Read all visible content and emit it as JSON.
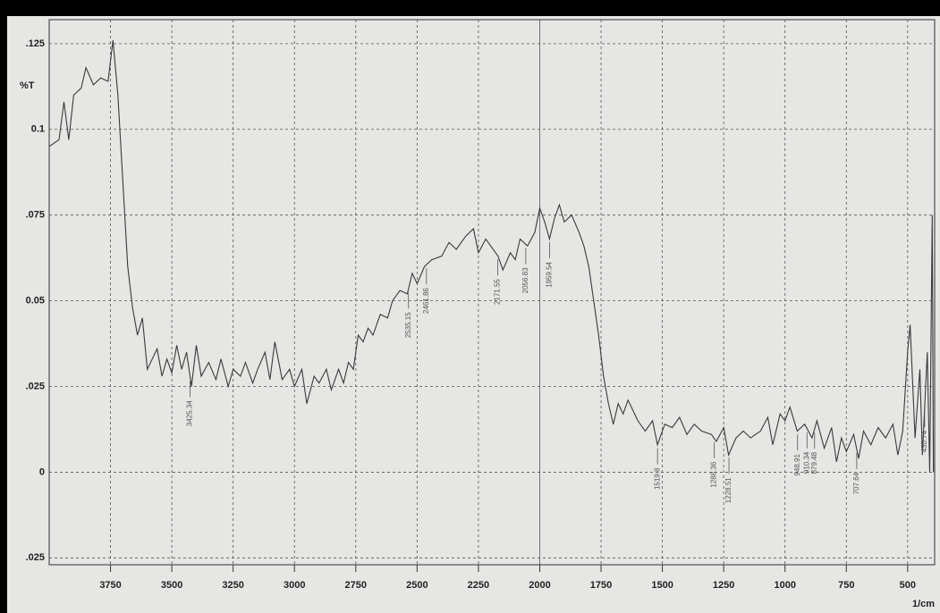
{
  "chart_data": {
    "type": "line",
    "ylabel": "%T",
    "xlabel": "1/cm",
    "xlim": [
      4000,
      390
    ],
    "xticks": [
      3750,
      3500,
      3250,
      3000,
      2750,
      2500,
      2250,
      2000,
      1750,
      1500,
      1250,
      1000,
      750,
      500
    ],
    "ylim": [
      -0.027,
      0.132
    ],
    "yticks": [
      {
        "value": 0.125,
        "label": ".125"
      },
      0.1,
      {
        "value": 0.075,
        "label": ".075"
      },
      0.05,
      {
        "value": 0.025,
        "label": ".025"
      },
      0,
      {
        "value": -0.025,
        "label": ".025"
      }
    ],
    "grid": true,
    "series": [
      {
        "color": "#3a3a3a",
        "x": [
          4000,
          3960,
          3940,
          3920,
          3900,
          3870,
          3850,
          3820,
          3790,
          3760,
          3740,
          3720,
          3700,
          3680,
          3660,
          3640,
          3620,
          3600,
          3580,
          3560,
          3540,
          3520,
          3500,
          3480,
          3460,
          3440,
          3420,
          3400,
          3380,
          3350,
          3320,
          3300,
          3270,
          3250,
          3220,
          3200,
          3170,
          3150,
          3120,
          3100,
          3080,
          3050,
          3020,
          3000,
          2970,
          2950,
          2920,
          2900,
          2870,
          2850,
          2820,
          2800,
          2780,
          2760,
          2740,
          2720,
          2700,
          2680,
          2650,
          2620,
          2600,
          2570,
          2540,
          2520,
          2500,
          2470,
          2440,
          2400,
          2370,
          2340,
          2300,
          2270,
          2250,
          2220,
          2200,
          2170,
          2150,
          2120,
          2100,
          2080,
          2050,
          2020,
          2000,
          1980,
          1960,
          1940,
          1920,
          1900,
          1870,
          1840,
          1820,
          1800,
          1780,
          1760,
          1740,
          1720,
          1700,
          1680,
          1660,
          1640,
          1600,
          1570,
          1540,
          1520,
          1490,
          1460,
          1430,
          1400,
          1370,
          1340,
          1300,
          1280,
          1250,
          1230,
          1200,
          1170,
          1140,
          1100,
          1070,
          1050,
          1020,
          1000,
          980,
          950,
          920,
          890,
          870,
          840,
          810,
          790,
          770,
          750,
          720,
          700,
          680,
          650,
          620,
          590,
          560,
          540,
          520,
          500,
          490,
          470,
          450,
          440,
          420,
          410,
          400,
          395
        ],
        "values": [
          0.095,
          0.097,
          0.108,
          0.097,
          0.11,
          0.112,
          0.118,
          0.113,
          0.115,
          0.114,
          0.126,
          0.11,
          0.085,
          0.06,
          0.048,
          0.04,
          0.045,
          0.03,
          0.033,
          0.036,
          0.028,
          0.033,
          0.029,
          0.037,
          0.03,
          0.035,
          0.025,
          0.037,
          0.028,
          0.032,
          0.027,
          0.033,
          0.025,
          0.03,
          0.028,
          0.032,
          0.026,
          0.03,
          0.035,
          0.027,
          0.038,
          0.027,
          0.03,
          0.025,
          0.03,
          0.02,
          0.028,
          0.026,
          0.03,
          0.024,
          0.03,
          0.026,
          0.032,
          0.03,
          0.04,
          0.038,
          0.042,
          0.04,
          0.046,
          0.045,
          0.05,
          0.053,
          0.052,
          0.058,
          0.055,
          0.06,
          0.062,
          0.063,
          0.067,
          0.065,
          0.069,
          0.071,
          0.064,
          0.068,
          0.066,
          0.063,
          0.059,
          0.064,
          0.062,
          0.068,
          0.066,
          0.07,
          0.077,
          0.073,
          0.068,
          0.074,
          0.078,
          0.073,
          0.075,
          0.07,
          0.066,
          0.06,
          0.05,
          0.04,
          0.028,
          0.02,
          0.014,
          0.02,
          0.017,
          0.021,
          0.015,
          0.012,
          0.015,
          0.008,
          0.014,
          0.013,
          0.016,
          0.011,
          0.014,
          0.012,
          0.011,
          0.009,
          0.013,
          0.005,
          0.01,
          0.012,
          0.01,
          0.012,
          0.016,
          0.008,
          0.017,
          0.015,
          0.019,
          0.012,
          0.014,
          0.01,
          0.015,
          0.007,
          0.013,
          0.003,
          0.01,
          0.006,
          0.011,
          0.004,
          0.012,
          0.008,
          0.013,
          0.01,
          0.014,
          0.005,
          0.012,
          0.035,
          0.043,
          0.01,
          0.03,
          0.005,
          0.035,
          0.0,
          0.075,
          0.0
        ]
      }
    ],
    "peaks": [
      3425.34,
      2535.15,
      2461.86,
      2171.55,
      2056.83,
      1959.54,
      1519.8,
      1288.36,
      1228.51,
      948.91,
      910.34,
      879.48,
      707.64,
      430.74
    ]
  }
}
